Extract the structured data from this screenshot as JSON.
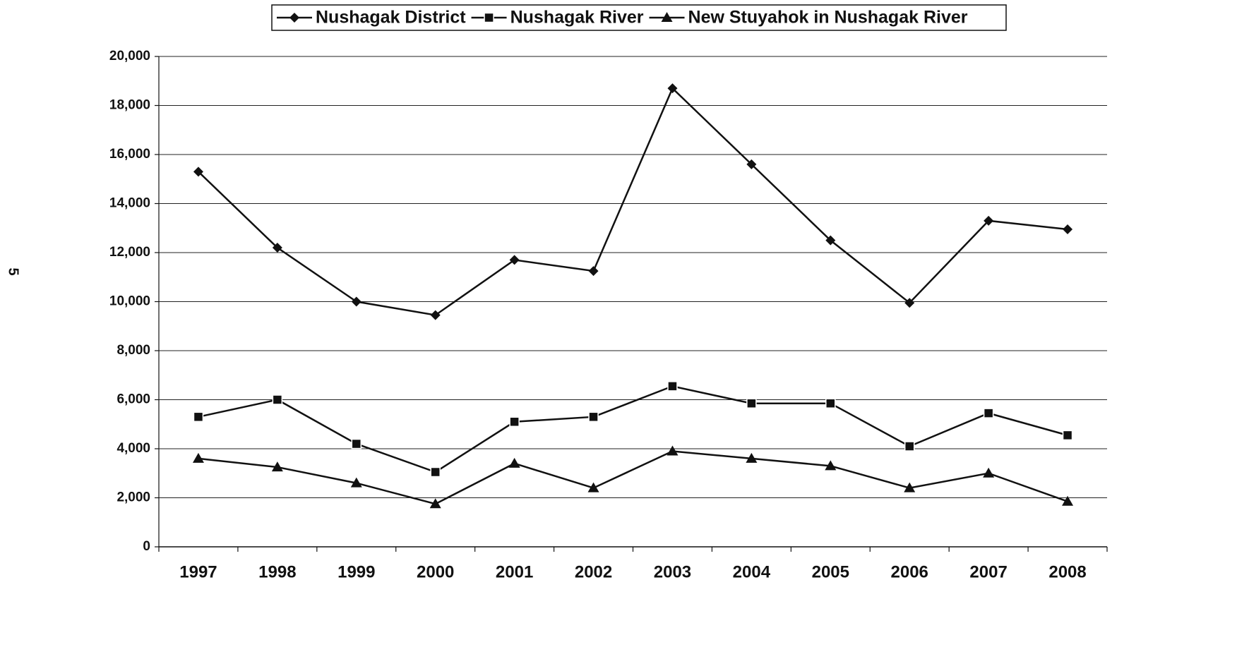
{
  "page_number": "5",
  "chart_data": {
    "type": "line",
    "categories": [
      "1997",
      "1998",
      "1999",
      "2000",
      "2001",
      "2002",
      "2003",
      "2004",
      "2005",
      "2006",
      "2007",
      "2008"
    ],
    "series": [
      {
        "name": "Nushagak District",
        "color": "#111111",
        "marker": "diamond",
        "values": [
          15300,
          12200,
          10000,
          9450,
          11700,
          11250,
          18700,
          15600,
          12500,
          9950,
          13300,
          12950
        ]
      },
      {
        "name": "Nushagak River",
        "color": "#111111",
        "marker": "square",
        "values": [
          5300,
          6000,
          4200,
          3050,
          5100,
          5300,
          6550,
          5850,
          5850,
          4100,
          5450,
          4550
        ]
      },
      {
        "name": "New Stuyahok in Nushagak River",
        "color": "#111111",
        "marker": "triangle",
        "values": [
          3600,
          3250,
          2600,
          1750,
          3400,
          2400,
          3900,
          3600,
          3300,
          2400,
          3000,
          1850
        ]
      }
    ],
    "ylim": [
      0,
      20000
    ],
    "yticks": [
      0,
      {
        "value": 2000,
        "label": "2,000"
      },
      {
        "value": 4000,
        "label": "4,000"
      },
      {
        "value": 6000,
        "label": "6,000"
      },
      {
        "value": 8000,
        "label": "8,000"
      },
      {
        "value": 10000,
        "label": "10,000"
      },
      {
        "value": 12000,
        "label": "12,000"
      },
      {
        "value": 14000,
        "label": "14,000"
      },
      {
        "value": 16000,
        "label": "16,000"
      },
      {
        "value": 18000,
        "label": "18,000"
      },
      {
        "value": 20000,
        "label": "20,000"
      }
    ],
    "grid": true,
    "legend": "top"
  }
}
